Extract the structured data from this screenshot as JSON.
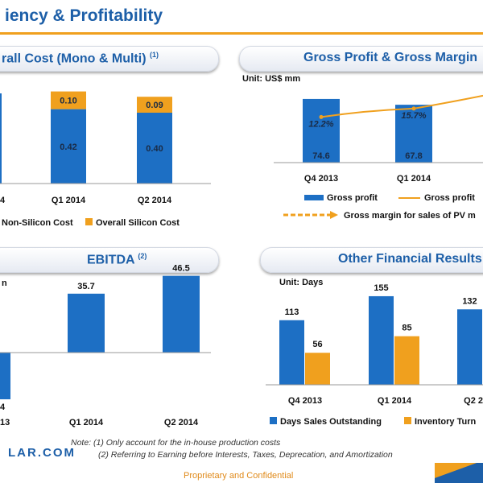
{
  "slide": {
    "title": "iency & Profitability",
    "footer_url": "LAR.COM",
    "footer_confidential": "Proprietary and Confidential",
    "note_line1": "Note: (1) Only account for the in-house production costs",
    "note_line2": "(2) Referring to Earning before Interests, Taxes, Deprecation, and Amortization",
    "colors": {
      "blue": "#1d6fc4",
      "orange": "#f0a01e",
      "title_blue": "#1d5fa8"
    }
  },
  "panels": {
    "cost": {
      "title": "rall Cost (Mono & Multi)",
      "sup": "(1)"
    },
    "gross": {
      "title": "Gross Profit & Gross Margin"
    },
    "ebitda": {
      "title": "EBITDA",
      "sup": "(2)"
    },
    "other": {
      "title": "Other Financial Results"
    }
  },
  "chart_data": [
    {
      "id": "cost",
      "type": "bar",
      "stacked": true,
      "categories": [
        "4",
        "Q1 2014",
        "Q2 2014"
      ],
      "series": [
        {
          "name": "Non-Silicon Cost",
          "color": "#1d6fc4",
          "values": [
            null,
            0.42,
            0.4
          ]
        },
        {
          "name": "Overall Silicon Cost",
          "color": "#f0a01e",
          "values": [
            null,
            0.1,
            0.09
          ]
        }
      ],
      "value_labels": [
        [
          null,
          "0.42",
          "0.40"
        ],
        [
          null,
          "0.10",
          "0.09"
        ]
      ],
      "legend": "bottom"
    },
    {
      "id": "gross",
      "type": "bar",
      "unit": "Unit: US$ mm",
      "categories": [
        "Q4 2013",
        "Q1 2014"
      ],
      "series": [
        {
          "name": "Gross profit",
          "color": "#1d6fc4",
          "values": [
            74.6,
            67.8
          ]
        },
        {
          "name": "Gross profit",
          "color": "#f0a01e",
          "type": "line",
          "values": [
            12.2,
            15.7
          ],
          "labels": [
            "12.2%",
            "15.7%"
          ]
        },
        {
          "name": "Gross margin for sales of PV m",
          "color": "#f0a01e",
          "type": "line",
          "style": "dashed"
        }
      ],
      "legend": "bottom"
    },
    {
      "id": "ebitda",
      "type": "bar",
      "unit": "n",
      "categories": [
        "13",
        "Q1 2014",
        "Q2 2014"
      ],
      "series": [
        {
          "name": "EBITDA",
          "color": "#1d6fc4",
          "values": [
            null,
            35.7,
            46.5
          ]
        }
      ],
      "value_labels": [
        "4",
        "35.7",
        "46.5"
      ]
    },
    {
      "id": "other",
      "type": "bar",
      "unit": "Unit: Days",
      "categories": [
        "Q4 2013",
        "Q1 2014",
        "Q2 2"
      ],
      "series": [
        {
          "name": "Days Sales Outstanding",
          "color": "#1d6fc4",
          "values": [
            113,
            155,
            132
          ]
        },
        {
          "name": "Inventory Turn",
          "color": "#f0a01e",
          "values": [
            56,
            85,
            null
          ]
        }
      ],
      "legend": "bottom"
    }
  ]
}
